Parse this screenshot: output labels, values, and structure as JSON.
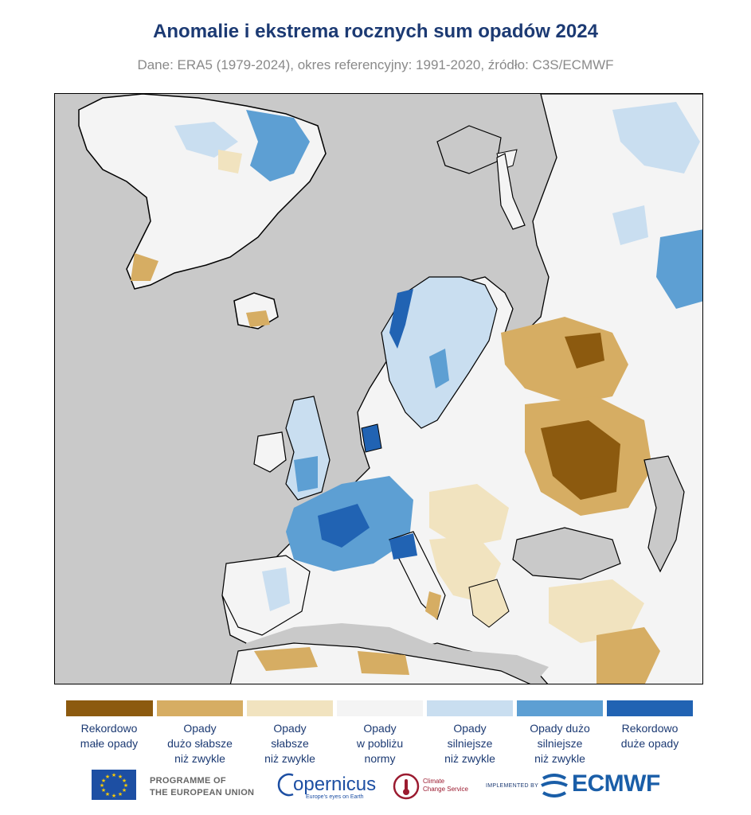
{
  "header": {
    "title": "Anomalie i ekstrema rocznych sum opadów 2024",
    "subtitle": "Dane: ERA5 (1979-2024), okres referencyjny: 1991-2020, źródło: C3S/ECMWF"
  },
  "colors": {
    "sea": "#c9c9c9",
    "record_low": "#8c5a0f",
    "much_drier": "#d6ad63",
    "drier": "#f1e3bf",
    "near_normal": "#f4f4f4",
    "wetter": "#c9def0",
    "much_wetter": "#5d9fd3",
    "record_high": "#2163b3",
    "title": "#1c3a73"
  },
  "legend": [
    {
      "label": "Rekordowo\nmałe opady",
      "color": "#8c5a0f"
    },
    {
      "label": "Opady\ndużo słabsze\nniż zwykle",
      "color": "#d6ad63"
    },
    {
      "label": "Opady\nsłabsze\nniż zwykle",
      "color": "#f1e3bf"
    },
    {
      "label": "Opady\nw pobliżu\nnormy",
      "color": "#f4f4f4"
    },
    {
      "label": "Opady\nsilniejsze\nniż zwykle",
      "color": "#c9def0"
    },
    {
      "label": "Opady dużo\nsilniejsze\nniż zwykle",
      "color": "#5d9fd3"
    },
    {
      "label": "Rekordowo\nduże opady",
      "color": "#2163b3"
    }
  ],
  "footer": {
    "eu_programme": "PROGRAMME OF\nTHE EUROPEAN UNION",
    "copernicus": "opernicus",
    "copernicus_tagline": "Europe's eyes on Earth",
    "c3s": "Climate\nChange Service",
    "implemented_by": "IMPLEMENTED BY",
    "ecmwf": "ECMWF"
  }
}
